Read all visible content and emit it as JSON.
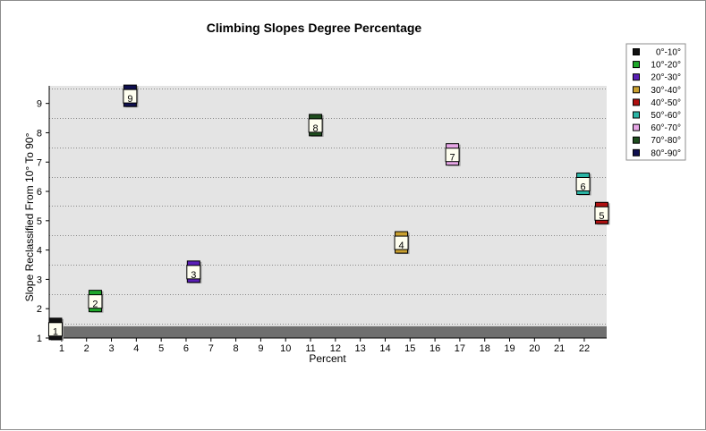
{
  "chart_data": {
    "type": "scatter",
    "title": "Climbing Slopes Degree Percentage",
    "xlabel": "Percent",
    "ylabel": "Slope Reclassified From 10° To 90°",
    "x_ticks": [
      "1",
      "2",
      "3",
      "4",
      "5",
      "6",
      "7",
      "8",
      "9",
      "10",
      "11",
      "12",
      "13",
      "14",
      "15",
      "16",
      "17",
      "18",
      "19",
      "20",
      "21",
      "22"
    ],
    "y_ticks": [
      "1",
      "2",
      "3",
      "4",
      "5",
      "6",
      "7",
      "8",
      "9"
    ],
    "xlim": [
      0.5,
      22.9
    ],
    "ylim": [
      1,
      9.6
    ],
    "y_band": [
      1,
      1.4
    ],
    "grid": true,
    "legend_position": "right",
    "series": [
      {
        "name": "0°-10°",
        "label": "1",
        "x": 0.75,
        "y": 1.25,
        "color": "#111111"
      },
      {
        "name": "10°-20°",
        "label": "2",
        "x": 2.35,
        "y": 2.2,
        "color": "#1fa82a"
      },
      {
        "name": "20°-30°",
        "label": "3",
        "x": 6.3,
        "y": 3.2,
        "color": "#5a1fb5"
      },
      {
        "name": "30°-40°",
        "label": "4",
        "x": 14.65,
        "y": 4.2,
        "color": "#c9a030"
      },
      {
        "name": "40°-50°",
        "label": "5",
        "x": 22.7,
        "y": 5.2,
        "color": "#b01010"
      },
      {
        "name": "50°-60°",
        "label": "6",
        "x": 21.95,
        "y": 6.2,
        "color": "#2bb5a5"
      },
      {
        "name": "60°-70°",
        "label": "7",
        "x": 16.7,
        "y": 7.2,
        "color": "#e6a6e6"
      },
      {
        "name": "70°-80°",
        "label": "8",
        "x": 11.2,
        "y": 8.2,
        "color": "#1e4d1e"
      },
      {
        "name": "80°-90°",
        "label": "9",
        "x": 3.75,
        "y": 9.2,
        "color": "#101050"
      }
    ]
  }
}
